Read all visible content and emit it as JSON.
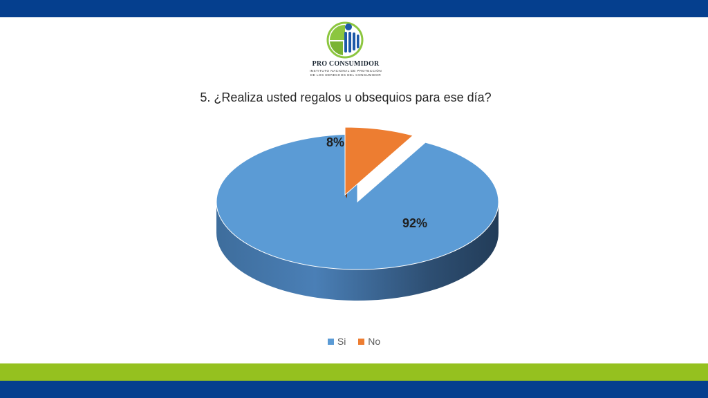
{
  "brand": {
    "name": "PRO CONSUMIDOR",
    "subtitle_line1": "INSTITUTO NACIONAL DE PROTECCIÓN",
    "subtitle_line2": "DE LOS DERECHOS DEL CONSUMIDOR",
    "colors": {
      "navy": "#053f8e",
      "green": "#95c11f",
      "logo_green": "#8cc63f",
      "logo_blue": "#1e5aa8"
    }
  },
  "chart_data": {
    "type": "pie",
    "title": "5. ¿Realiza usted regalos u obsequios para ese día?",
    "categories": [
      "Si",
      "No"
    ],
    "values": [
      92,
      8
    ],
    "data_labels": [
      "92%",
      "8%"
    ],
    "colors": [
      "#5b9bd5",
      "#ed7d31"
    ],
    "style": "3d-exploded",
    "legend_position": "bottom"
  }
}
